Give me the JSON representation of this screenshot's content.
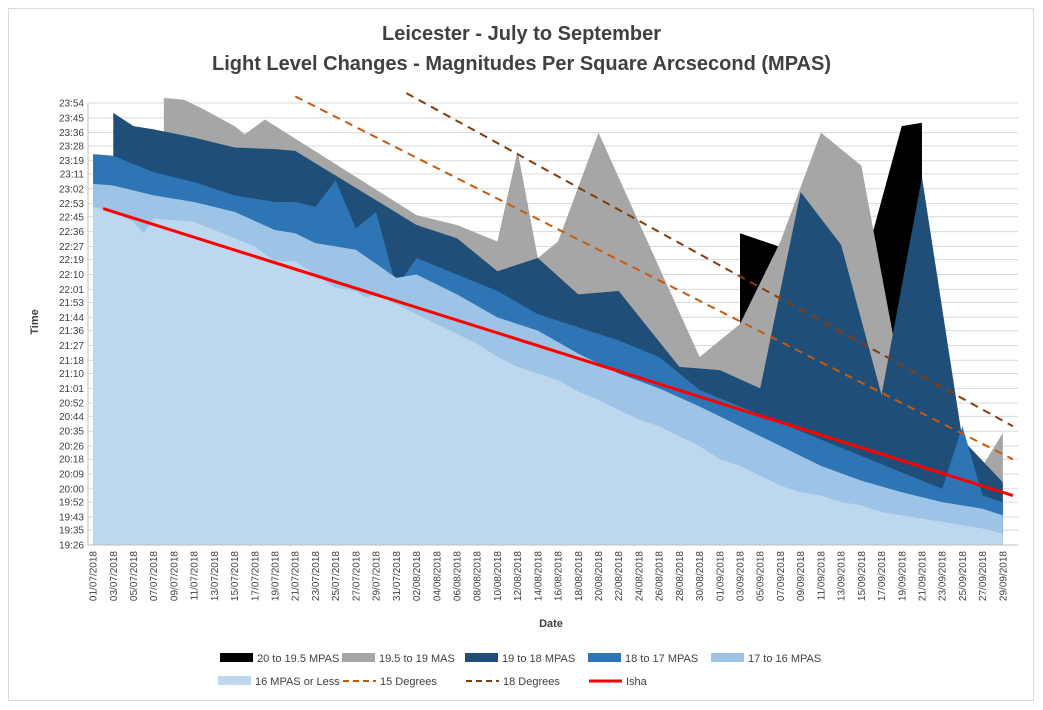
{
  "chart_data": {
    "type": "area",
    "title": "Leicester - July to September",
    "subtitle": "Light Level Changes - Magnitudes Per Square Arcsecond (MPAS)",
    "xlabel": "Date",
    "ylabel": "Time",
    "ylim": [
      "19:26",
      "23:54"
    ],
    "y_ticks": [
      "19:26",
      "19:35",
      "19:43",
      "19:52",
      "20:00",
      "20:09",
      "20:18",
      "20:26",
      "20:35",
      "20:44",
      "20:52",
      "21:01",
      "21:10",
      "21:18",
      "21:27",
      "21:36",
      "21:44",
      "21:53",
      "22:01",
      "22:10",
      "22:19",
      "22:27",
      "22:36",
      "22:45",
      "22:53",
      "23:02",
      "23:11",
      "23:19",
      "23:28",
      "23:36",
      "23:45",
      "23:54"
    ],
    "x_ticks": [
      "01/07/2018",
      "03/07/2018",
      "05/07/2018",
      "07/07/2018",
      "09/07/2018",
      "11/07/2018",
      "13/07/2018",
      "15/07/2018",
      "17/07/2018",
      "19/07/2018",
      "21/07/2018",
      "23/07/2018",
      "25/07/2018",
      "27/07/2018",
      "29/07/2018",
      "31/07/2018",
      "02/08/2018",
      "04/08/2018",
      "06/08/2018",
      "08/08/2018",
      "10/08/2018",
      "12/08/2018",
      "14/08/2018",
      "16/08/2018",
      "18/08/2018",
      "20/08/2018",
      "22/08/2018",
      "24/08/2018",
      "26/08/2018",
      "28/08/2018",
      "30/08/2018",
      "01/09/2018",
      "03/09/2018",
      "05/09/2018",
      "07/09/2018",
      "09/09/2018",
      "11/09/2018",
      "13/09/2018",
      "15/09/2018",
      "17/09/2018",
      "19/09/2018",
      "21/09/2018",
      "23/09/2018",
      "25/09/2018",
      "27/09/2018",
      "29/09/2018"
    ],
    "grid": true,
    "legend_position": "bottom",
    "legend": [
      {
        "label": "20 to 19.5 MPAS",
        "kind": "area",
        "color": "#000000"
      },
      {
        "label": "19.5 to 19 MAS",
        "kind": "area",
        "color": "#a6a6a6"
      },
      {
        "label": "19 to 18 MPAS",
        "kind": "area",
        "color": "#1f4e79"
      },
      {
        "label": "18 to 17 MPAS",
        "kind": "area",
        "color": "#2e75b6"
      },
      {
        "label": "17 to 16 MPAS",
        "kind": "area",
        "color": "#9dc3e6"
      },
      {
        "label": "16 MPAS or Less",
        "kind": "area",
        "color": "#bdd7ee"
      },
      {
        "label": "15 Degrees",
        "kind": "dash",
        "color": "#c55a11"
      },
      {
        "label": "18 Degrees",
        "kind": "dash",
        "color": "#843c0c"
      },
      {
        "label": "Isha",
        "kind": "line",
        "color": "#ff0000"
      }
    ],
    "series": [
      {
        "name": "16 MPAS or Less",
        "color": "#bdd7ee",
        "points": [
          [
            0,
            "22:51"
          ],
          [
            2,
            "22:48"
          ],
          [
            4,
            "22:42"
          ],
          [
            5,
            "22:35"
          ],
          [
            6,
            "22:44"
          ],
          [
            10,
            "22:42"
          ],
          [
            14,
            "22:32"
          ],
          [
            16,
            "22:27"
          ],
          [
            18,
            "22:18"
          ],
          [
            20,
            "22:18"
          ],
          [
            22,
            "22:10"
          ],
          [
            24,
            "22:02"
          ],
          [
            26,
            "22:00"
          ],
          [
            27,
            "21:56"
          ],
          [
            28,
            "21:58"
          ],
          [
            30,
            "21:52"
          ],
          [
            32,
            "21:46"
          ],
          [
            34,
            "21:40"
          ],
          [
            36,
            "21:34"
          ],
          [
            38,
            "21:28"
          ],
          [
            40,
            "21:20"
          ],
          [
            42,
            "21:14"
          ],
          [
            44,
            "21:10"
          ],
          [
            46,
            "21:06"
          ],
          [
            48,
            "20:59"
          ],
          [
            50,
            "20:54"
          ],
          [
            52,
            "20:48"
          ],
          [
            54,
            "20:42"
          ],
          [
            56,
            "20:38"
          ],
          [
            58,
            "20:32"
          ],
          [
            60,
            "20:26"
          ],
          [
            62,
            "20:18"
          ],
          [
            64,
            "20:14"
          ],
          [
            66,
            "20:08"
          ],
          [
            68,
            "20:02"
          ],
          [
            70,
            "19:58"
          ],
          [
            72,
            "19:56"
          ],
          [
            74,
            "19:52"
          ],
          [
            76,
            "19:50"
          ],
          [
            78,
            "19:46"
          ],
          [
            80,
            "19:44"
          ],
          [
            84,
            "19:40"
          ],
          [
            86,
            "19:38"
          ],
          [
            88,
            "19:36"
          ],
          [
            90,
            "19:33"
          ]
        ]
      },
      {
        "name": "17 to 16 MPAS",
        "color": "#9dc3e6",
        "points": [
          [
            0,
            "23:05"
          ],
          [
            2,
            "23:04"
          ],
          [
            6,
            "22:58"
          ],
          [
            10,
            "22:54"
          ],
          [
            14,
            "22:48"
          ],
          [
            18,
            "22:37"
          ],
          [
            20,
            "22:35"
          ],
          [
            22,
            "22:29"
          ],
          [
            26,
            "22:25"
          ],
          [
            30,
            "22:08"
          ],
          [
            32,
            "22:10"
          ],
          [
            36,
            "21:58"
          ],
          [
            40,
            "21:44"
          ],
          [
            44,
            "21:36"
          ],
          [
            48,
            "21:22"
          ],
          [
            52,
            "21:10"
          ],
          [
            56,
            "21:01"
          ],
          [
            60,
            "20:50"
          ],
          [
            64,
            "20:38"
          ],
          [
            68,
            "20:26"
          ],
          [
            72,
            "20:14"
          ],
          [
            76,
            "20:05"
          ],
          [
            80,
            "19:58"
          ],
          [
            84,
            "19:52"
          ],
          [
            88,
            "19:48"
          ],
          [
            90,
            "19:44"
          ]
        ]
      },
      {
        "name": "18 to 17 MPAS",
        "color": "#2e75b6",
        "points": [
          [
            0,
            "23:23"
          ],
          [
            2,
            "23:22"
          ],
          [
            6,
            "23:12"
          ],
          [
            10,
            "23:06"
          ],
          [
            14,
            "22:58"
          ],
          [
            18,
            "22:54"
          ],
          [
            20,
            "22:54"
          ],
          [
            22,
            "22:51"
          ],
          [
            24,
            "23:07"
          ],
          [
            26,
            "22:38"
          ],
          [
            28,
            "22:48"
          ],
          [
            30,
            "22:02"
          ],
          [
            32,
            "22:20"
          ],
          [
            36,
            "22:10"
          ],
          [
            40,
            "22:00"
          ],
          [
            44,
            "21:46"
          ],
          [
            48,
            "21:38"
          ],
          [
            52,
            "21:30"
          ],
          [
            56,
            "21:20"
          ],
          [
            60,
            "21:00"
          ],
          [
            64,
            "20:50"
          ],
          [
            68,
            "20:40"
          ],
          [
            72,
            "20:30"
          ],
          [
            76,
            "20:20"
          ],
          [
            80,
            "20:10"
          ],
          [
            84,
            "20:00"
          ],
          [
            86,
            "20:38"
          ],
          [
            88,
            "19:56"
          ],
          [
            90,
            "19:52"
          ]
        ]
      },
      {
        "name": "19 to 18 MPAS",
        "color": "#1f4e79",
        "points": [
          [
            2,
            "23:48"
          ],
          [
            4,
            "23:40"
          ],
          [
            6,
            "23:38"
          ],
          [
            10,
            "23:33"
          ],
          [
            14,
            "23:27"
          ],
          [
            18,
            "23:26"
          ],
          [
            20,
            "23:25"
          ],
          [
            32,
            "22:40"
          ],
          [
            36,
            "22:32"
          ],
          [
            40,
            "22:12"
          ],
          [
            44,
            "22:20"
          ],
          [
            48,
            "21:58"
          ],
          [
            52,
            "22:00"
          ],
          [
            58,
            "21:14"
          ],
          [
            62,
            "21:12"
          ],
          [
            66,
            "21:01"
          ],
          [
            70,
            "23:00"
          ],
          [
            74,
            "22:28"
          ],
          [
            78,
            "20:57"
          ],
          [
            82,
            "23:09"
          ],
          [
            86,
            "20:30"
          ],
          [
            90,
            "20:04"
          ]
        ]
      },
      {
        "name": "19.5 to 19 MAS",
        "color": "#a6a6a6",
        "points": [
          [
            7,
            "23:57"
          ],
          [
            9,
            "23:56"
          ],
          [
            11,
            "23:50"
          ],
          [
            14,
            "23:40"
          ],
          [
            15,
            "23:35"
          ],
          [
            17,
            "23:44"
          ],
          [
            32,
            "22:46"
          ],
          [
            36,
            "22:40"
          ],
          [
            40,
            "22:30"
          ],
          [
            42,
            "23:25"
          ],
          [
            44,
            "22:20"
          ],
          [
            46,
            "22:30"
          ],
          [
            50,
            "23:36"
          ],
          [
            60,
            "21:20"
          ],
          [
            64,
            "21:40"
          ],
          [
            68,
            "22:30"
          ],
          [
            72,
            "23:36"
          ],
          [
            76,
            "23:16"
          ],
          [
            80,
            "21:05"
          ],
          [
            88,
            "20:14"
          ],
          [
            90,
            "20:34"
          ]
        ]
      },
      {
        "name": "20 to 19.5 MPAS",
        "color": "#000000",
        "points": [
          [
            64,
            "22:35"
          ],
          [
            76,
            "22:10"
          ],
          [
            80,
            "23:40"
          ],
          [
            82,
            "23:42"
          ]
        ]
      }
    ],
    "lines": [
      {
        "name": "Isha",
        "color": "#ff0000",
        "points": [
          [
            1,
            "22:50"
          ],
          [
            91,
            "19:56"
          ]
        ]
      },
      {
        "name": "15 Degrees",
        "color": "#c55a11",
        "points": [
          [
            20,
            "23:58"
          ],
          [
            91,
            "20:18"
          ]
        ]
      },
      {
        "name": "18 Degrees",
        "color": "#843c0c",
        "points": [
          [
            31,
            "24:00"
          ],
          [
            91,
            "20:38"
          ]
        ]
      }
    ]
  }
}
